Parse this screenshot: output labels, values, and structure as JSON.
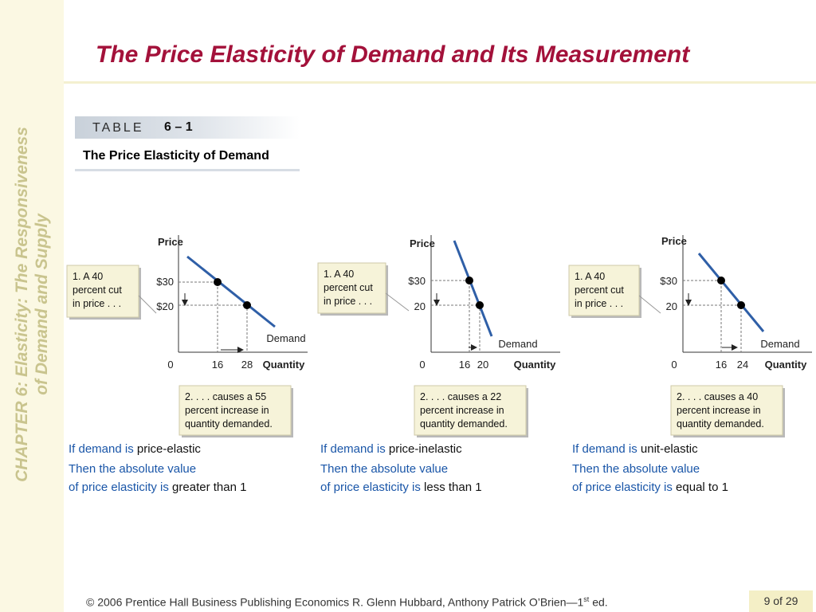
{
  "sidebar": {
    "line1": "CHAPTER 6:  Elasticity:  The Responsiveness",
    "line2": "of Demand and Supply"
  },
  "title": "The Price Elasticity of Demand and Its Measurement",
  "table_tag": {
    "word": "TABLE",
    "number": "6 – 1"
  },
  "table_caption": "The Price Elasticity of Demand",
  "panels": [
    {
      "type": "price-elastic",
      "price_axis_label": "Price",
      "quantity_axis_label": "Quantity",
      "price_ticks": [
        "$30",
        "$20"
      ],
      "quantity_ticks": [
        "0",
        "16",
        "28"
      ],
      "demand_label": "Demand",
      "points": [
        {
          "quantity": 16,
          "price": 30
        },
        {
          "quantity": 28,
          "price": 20
        }
      ],
      "callout_top": [
        "1. A 40",
        "percent cut",
        "in price . . ."
      ],
      "callout_bottom": [
        "2.  . . . causes a 55",
        "percent increase in",
        "quantity demanded."
      ],
      "line1_blue": "If demand is ",
      "line1_black": "price-elastic",
      "line2_blue": "Then the absolute value",
      "line3_blue": "of price elasticity is ",
      "line3_black": "greater than 1"
    },
    {
      "type": "price-inelastic",
      "price_axis_label": "Price",
      "quantity_axis_label": "Quantity",
      "price_ticks": [
        "$30",
        "20"
      ],
      "quantity_ticks": [
        "0",
        "16",
        "20"
      ],
      "demand_label": "Demand",
      "points": [
        {
          "quantity": 16,
          "price": 30
        },
        {
          "quantity": 20,
          "price": 20
        }
      ],
      "callout_top": [
        "1. A 40",
        "percent cut",
        "in price . . ."
      ],
      "callout_bottom": [
        "2.  . . . causes a 22",
        "percent increase in",
        "quantity demanded."
      ],
      "line1_blue": "If demand is ",
      "line1_black": "price-inelastic",
      "line2_blue": "Then the absolute value",
      "line3_blue": "of price elasticity is ",
      "line3_black": "less than 1"
    },
    {
      "type": "unit-elastic",
      "price_axis_label": "Price",
      "quantity_axis_label": "Quantity",
      "price_ticks": [
        "$30",
        "20"
      ],
      "quantity_ticks": [
        "0",
        "16",
        "24"
      ],
      "demand_label": "Demand",
      "points": [
        {
          "quantity": 16,
          "price": 30
        },
        {
          "quantity": 24,
          "price": 20
        }
      ],
      "callout_top": [
        "1. A 40",
        "percent cut",
        "in price . . ."
      ],
      "callout_bottom": [
        "2.  . . . causes a 40",
        "percent increase in",
        "quantity demanded."
      ],
      "line1_blue": "If demand is ",
      "line1_black": "unit-elastic",
      "line2_blue": "Then the absolute value",
      "line3_blue": "of price elasticity is ",
      "line3_black": "equal to 1"
    }
  ],
  "footer": {
    "text": "© 2006 Prentice Hall Business Publishing   Economics  R. Glenn Hubbard, Anthony Patrick O’Brien—1",
    "sup": "st",
    "tail": " ed."
  },
  "page_number": "9 of 29",
  "colors": {
    "title": "#a3113a",
    "demand_line": "#2f5fa7",
    "explanation_blue": "#1a56a8",
    "sidebar_text": "#c9c48e"
  }
}
